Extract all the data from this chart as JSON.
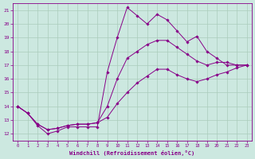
{
  "xlabel": "Windchill (Refroidissement éolien,°C)",
  "bg_color": "#cce8e0",
  "grid_color": "#aaccbb",
  "line_color": "#880088",
  "xlim": [
    -0.5,
    23.5
  ],
  "ylim": [
    11.5,
    21.5
  ],
  "xticks": [
    0,
    1,
    2,
    3,
    4,
    5,
    6,
    7,
    8,
    9,
    10,
    11,
    12,
    13,
    14,
    15,
    16,
    17,
    18,
    19,
    20,
    21,
    22,
    23
  ],
  "yticks": [
    12,
    13,
    14,
    15,
    16,
    17,
    18,
    19,
    20,
    21
  ],
  "series": [
    {
      "x": [
        0,
        1,
        2,
        3,
        4,
        5,
        6,
        7,
        8,
        9,
        10,
        11,
        12,
        13,
        14,
        15,
        16,
        17,
        18,
        19,
        20,
        21,
        22,
        23
      ],
      "y": [
        14.0,
        13.5,
        12.6,
        12.0,
        12.2,
        12.5,
        12.5,
        12.5,
        12.5,
        16.5,
        19.0,
        21.2,
        20.6,
        20.0,
        20.7,
        20.3,
        19.5,
        18.7,
        19.1,
        18.0,
        17.5,
        17.0,
        17.0,
        17.0
      ]
    },
    {
      "x": [
        0,
        1,
        2,
        3,
        4,
        5,
        6,
        7,
        8,
        9,
        10,
        11,
        12,
        13,
        14,
        15,
        16,
        17,
        18,
        19,
        20,
        21,
        22,
        23
      ],
      "y": [
        14.0,
        13.5,
        12.7,
        12.3,
        12.4,
        12.6,
        12.7,
        12.7,
        12.8,
        14.0,
        16.0,
        17.5,
        18.0,
        18.5,
        18.8,
        18.8,
        18.3,
        17.8,
        17.3,
        17.0,
        17.2,
        17.2,
        17.0,
        17.0
      ]
    },
    {
      "x": [
        0,
        1,
        2,
        3,
        4,
        5,
        6,
        7,
        8,
        9,
        10,
        11,
        12,
        13,
        14,
        15,
        16,
        17,
        18,
        19,
        20,
        21,
        22,
        23
      ],
      "y": [
        14.0,
        13.5,
        12.7,
        12.3,
        12.4,
        12.6,
        12.7,
        12.7,
        12.8,
        13.2,
        14.2,
        15.0,
        15.7,
        16.2,
        16.7,
        16.7,
        16.3,
        16.0,
        15.8,
        16.0,
        16.3,
        16.5,
        16.8,
        17.0
      ]
    }
  ]
}
